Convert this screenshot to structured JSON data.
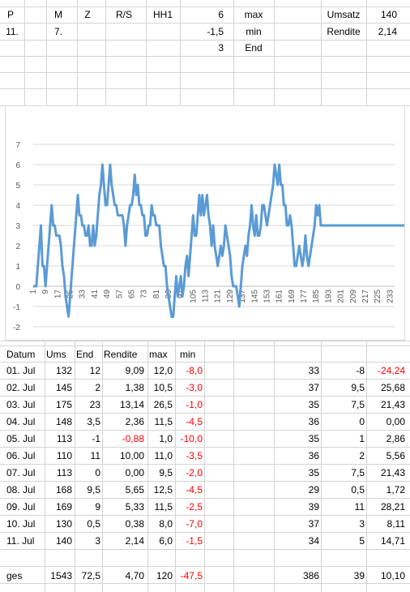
{
  "header_row1": {
    "p": "P",
    "m": "M",
    "z": "Z",
    "rs": "R/S",
    "hh1": "HH1",
    "val1": "6",
    "lab1": "max",
    "umsatz_label": "Umsatz",
    "umsatz_value": "140"
  },
  "header_row2": {
    "p": "11.",
    "m": "7.",
    "val2": "-1,5",
    "lab2": "min",
    "rendite_label": "Rendite",
    "rendite_value": "2,14"
  },
  "header_row3": {
    "val3": "3",
    "lab3": "End"
  },
  "chart_data": {
    "type": "line",
    "ylim": [
      -2,
      7
    ],
    "yticks": [
      "7",
      "6",
      "5",
      "4",
      "3",
      "2",
      "1",
      "0",
      "-1",
      "-2"
    ],
    "xticks": [
      "1",
      "9",
      "17",
      "25",
      "33",
      "41",
      "49",
      "57",
      "65",
      "73",
      "81",
      "89",
      "97",
      "105",
      "113",
      "121",
      "129",
      "137",
      "145",
      "153",
      "161",
      "169",
      "177",
      "185",
      "193",
      "201",
      "209",
      "217",
      "225",
      "233"
    ],
    "x_count": 236,
    "series_color": "#5b9bd5",
    "values": [
      0,
      0,
      0,
      1,
      2,
      3,
      1,
      1,
      0,
      1,
      2,
      3,
      4,
      3,
      3,
      2.5,
      2.5,
      2.5,
      2,
      1,
      0.5,
      -0.5,
      -1,
      -1.5,
      -0.5,
      0.5,
      1.5,
      2.5,
      3.5,
      4.5,
      3.5,
      3.5,
      3,
      3,
      2.5,
      2.5,
      3,
      2,
      2,
      3,
      2,
      2.5,
      3.5,
      4.5,
      5,
      6,
      5,
      4,
      4,
      5,
      6,
      5,
      4.5,
      4,
      4,
      3.5,
      3.5,
      3.5,
      3.5,
      3,
      2,
      3,
      3.5,
      4,
      4,
      4.5,
      5.5,
      4.5,
      5,
      4,
      4,
      3.5,
      3.5,
      2.5,
      2.5,
      3,
      3,
      4,
      3.5,
      3.5,
      3,
      3,
      3,
      2,
      1.5,
      1,
      1,
      0,
      -0.5,
      -1,
      -1.5,
      -1.5,
      -0.5,
      0.5,
      -0.5,
      0,
      0.5,
      -0.5,
      0,
      1,
      1.5,
      0.5,
      1.5,
      2.5,
      3.5,
      2.5,
      2.5,
      3.5,
      4.5,
      3.5,
      4.5,
      3.5,
      4,
      4.5,
      3.5,
      3,
      2,
      3,
      2,
      1.5,
      1,
      1.5,
      2,
      1.5,
      2,
      3,
      2.5,
      2,
      1.5,
      0.5,
      0,
      0,
      0,
      -0.5,
      -1,
      0,
      1,
      1.5,
      2,
      1.5,
      2.5,
      3,
      4,
      3,
      2.5,
      3.5,
      2.5,
      2.5,
      3,
      4,
      4,
      3.5,
      3,
      3.5,
      4,
      4.5,
      5,
      6,
      5.5,
      5,
      6,
      5,
      5,
      4,
      4,
      3,
      3,
      3.5,
      3,
      2,
      1,
      1,
      1.5,
      2,
      1.5,
      1,
      1.5,
      2.5,
      1.5,
      1,
      1.5,
      2,
      2.5,
      3,
      4,
      3.5,
      4,
      3,
      3,
      3,
      3,
      3,
      3,
      3,
      3,
      3,
      3,
      3,
      3,
      3,
      3,
      3,
      3,
      3,
      3,
      3,
      3,
      3,
      3,
      3,
      3,
      3,
      3,
      3,
      3,
      3,
      3,
      3,
      3,
      3,
      3,
      3,
      3,
      3,
      3,
      3,
      3,
      3,
      3,
      3,
      3,
      3,
      3,
      3,
      3,
      3,
      3,
      3,
      3,
      3,
      3,
      3,
      3,
      3,
      3
    ]
  },
  "table": {
    "headers": [
      "Datum",
      "Ums",
      "End",
      "Rendite",
      "max",
      "min"
    ],
    "rows": [
      {
        "datum": "01. Jul",
        "ums": "132",
        "end": "12",
        "rendite": "9,09",
        "max": "12,0",
        "min": "-8,0",
        "r1": "33",
        "r2": "-8",
        "r3": "-24,24"
      },
      {
        "datum": "02. Jul",
        "ums": "145",
        "end": "2",
        "rendite": "1,38",
        "max": "10,5",
        "min": "-3,0",
        "r1": "37",
        "r2": "9,5",
        "r3": "25,68"
      },
      {
        "datum": "03. Jul",
        "ums": "175",
        "end": "23",
        "rendite": "13,14",
        "max": "26,5",
        "min": "-1,0",
        "r1": "35",
        "r2": "7,5",
        "r3": "21,43"
      },
      {
        "datum": "04. Jul",
        "ums": "148",
        "end": "3,5",
        "rendite": "2,36",
        "max": "11,5",
        "min": "-4,5",
        "r1": "36",
        "r2": "0",
        "r3": "0,00"
      },
      {
        "datum": "05. Jul",
        "ums": "113",
        "end": "-1",
        "rendite": "-0,88",
        "max": "1,0",
        "min": "-10,0",
        "r1": "35",
        "r2": "1",
        "r3": "2,86"
      },
      {
        "datum": "06. Jul",
        "ums": "110",
        "end": "11",
        "rendite": "10,00",
        "max": "11,0",
        "min": "-3,5",
        "r1": "36",
        "r2": "2",
        "r3": "5,56"
      },
      {
        "datum": "07. Jul",
        "ums": "113",
        "end": "0",
        "rendite": "0,00",
        "max": "9,5",
        "min": "-2,0",
        "r1": "35",
        "r2": "7,5",
        "r3": "21,43"
      },
      {
        "datum": "08. Jul",
        "ums": "168",
        "end": "9,5",
        "rendite": "5,65",
        "max": "12,5",
        "min": "-4,5",
        "r1": "29",
        "r2": "0,5",
        "r3": "1,72"
      },
      {
        "datum": "09. Jul",
        "ums": "169",
        "end": "9",
        "rendite": "5,33",
        "max": "11,5",
        "min": "-2,5",
        "r1": "39",
        "r2": "11",
        "r3": "28,21"
      },
      {
        "datum": "10. Jul",
        "ums": "130",
        "end": "0,5",
        "rendite": "0,38",
        "max": "8,0",
        "min": "-7,0",
        "r1": "37",
        "r2": "3",
        "r3": "8,11"
      },
      {
        "datum": "11. Jul",
        "ums": "140",
        "end": "3",
        "rendite": "2,14",
        "max": "6,0",
        "min": "-1,5",
        "r1": "34",
        "r2": "5",
        "r3": "14,71"
      }
    ],
    "totals": {
      "label": "ges",
      "ums": "1543",
      "end": "72,5",
      "rendite": "4,70",
      "max": "120",
      "min": "-47,5",
      "r1": "386",
      "r2": "39",
      "r3": "10,10"
    }
  }
}
